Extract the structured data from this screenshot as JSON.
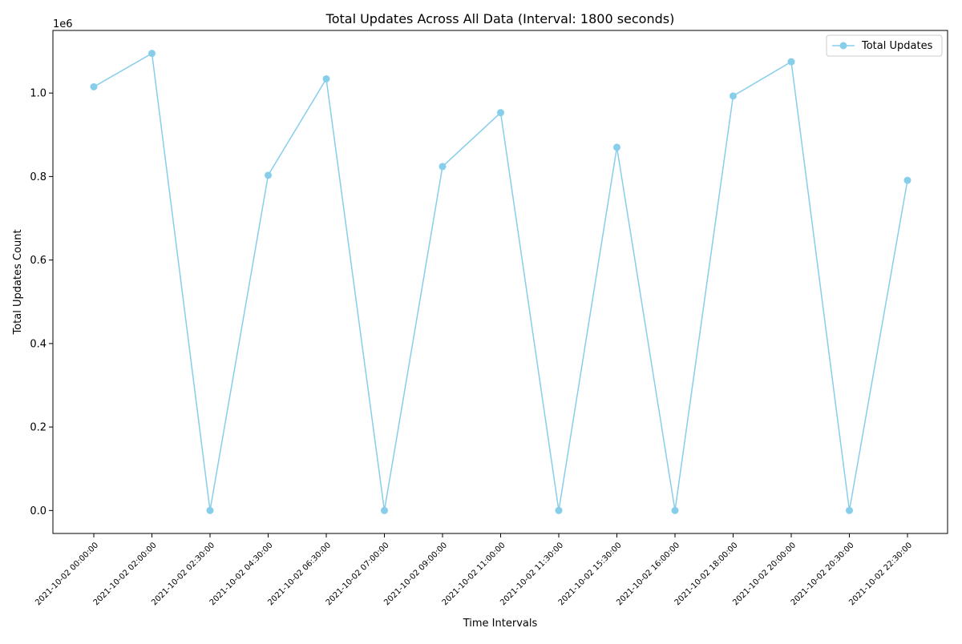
{
  "chart_data": {
    "type": "line",
    "title": "Total Updates Across All Data (Interval: 1800 seconds)",
    "xlabel": "Time Intervals",
    "ylabel": "Total Updates Count",
    "y_offset_label": "1e6",
    "categories": [
      "2021-10-02 00:00:00",
      "2021-10-02 02:00:00",
      "2021-10-02 02:30:00",
      "2021-10-02 04:30:00",
      "2021-10-02 06:30:00",
      "2021-10-02 07:00:00",
      "2021-10-02 09:00:00",
      "2021-10-02 11:00:00",
      "2021-10-02 11:30:00",
      "2021-10-02 15:30:00",
      "2021-10-02 16:00:00",
      "2021-10-02 18:00:00",
      "2021-10-02 20:00:00",
      "2021-10-02 20:30:00",
      "2021-10-02 22:30:00"
    ],
    "series": [
      {
        "name": "Total Updates",
        "color": "#87ceeb",
        "marker": "circle",
        "values": [
          1015000,
          1095000,
          0,
          803000,
          1034000,
          0,
          824000,
          953000,
          0,
          870000,
          0,
          993000,
          1075000,
          0,
          791000
        ]
      }
    ],
    "ylim": [
      -55000,
      1150000
    ],
    "yticks": [
      0,
      200000,
      400000,
      600000,
      800000,
      1000000
    ],
    "ytick_labels": [
      "0.0",
      "0.2",
      "0.4",
      "0.6",
      "0.8",
      "1.0"
    ],
    "grid": false,
    "legend_position": "top-right"
  }
}
